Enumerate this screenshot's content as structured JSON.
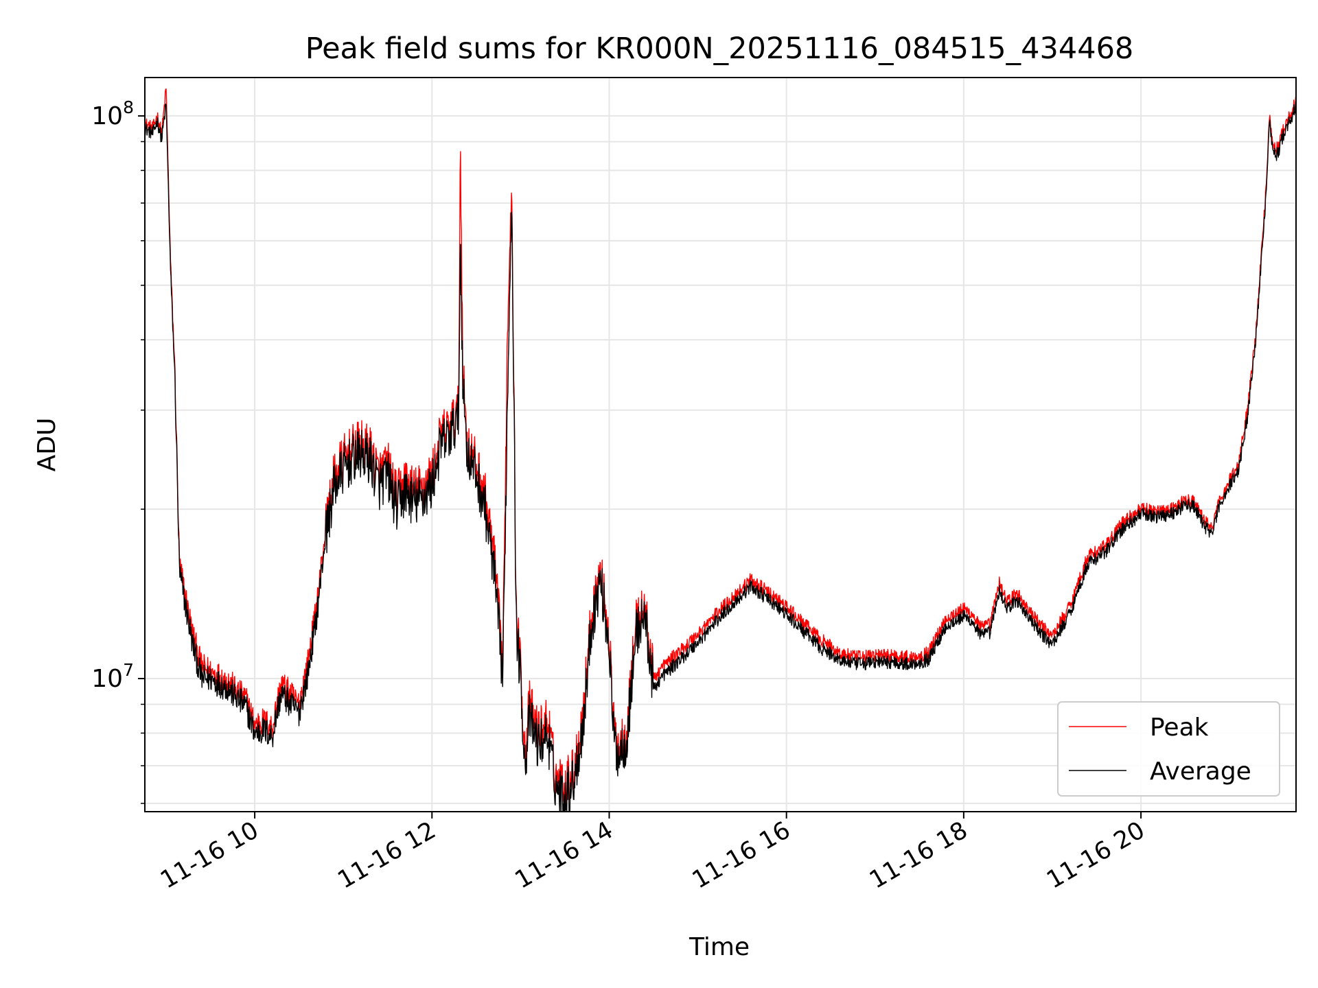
{
  "chart_data": {
    "type": "line",
    "title": "Peak field sums for KR000N_20251116_084515_434468",
    "xlabel": "Time",
    "ylabel": "ADU",
    "yscale": "log",
    "xlim": [
      8.76,
      21.75
    ],
    "ylim": [
      5800000,
      117000000
    ],
    "x_ticks": [
      {
        "value": 10,
        "label": "11-16 10"
      },
      {
        "value": 12,
        "label": "11-16 12"
      },
      {
        "value": 14,
        "label": "11-16 14"
      },
      {
        "value": 16,
        "label": "11-16 16"
      },
      {
        "value": 18,
        "label": "11-16 18"
      },
      {
        "value": 20,
        "label": "11-16 20"
      }
    ],
    "y_major_ticks": [
      {
        "value": 10000000,
        "base": "10",
        "exp": "7"
      },
      {
        "value": 100000000,
        "base": "10",
        "exp": "8"
      }
    ],
    "grid": true,
    "legend": {
      "position": "bottom-right",
      "entries": [
        "Peak",
        "Average"
      ]
    },
    "colors": {
      "Peak": "#ff0000",
      "Average": "#000000"
    },
    "series": [
      {
        "name": "Peak",
        "x": [
          8.76,
          8.85,
          8.9,
          8.95,
          9.0,
          9.05,
          9.1,
          9.15,
          9.2,
          9.3,
          9.4,
          9.5,
          9.6,
          9.7,
          9.8,
          9.9,
          10.0,
          10.1,
          10.2,
          10.25,
          10.3,
          10.4,
          10.5,
          10.6,
          10.7,
          10.8,
          10.9,
          11.0,
          11.1,
          11.2,
          11.3,
          11.4,
          11.5,
          11.6,
          11.7,
          11.8,
          11.9,
          12.0,
          12.1,
          12.2,
          12.3,
          12.32,
          12.35,
          12.4,
          12.5,
          12.6,
          12.7,
          12.8,
          12.85,
          12.9,
          12.95,
          13.0,
          13.05,
          13.1,
          13.2,
          13.3,
          13.4,
          13.5,
          13.6,
          13.7,
          13.8,
          13.9,
          14.0,
          14.05,
          14.1,
          14.2,
          14.3,
          14.4,
          14.5,
          14.6,
          14.8,
          15.0,
          15.2,
          15.4,
          15.6,
          15.8,
          16.0,
          16.2,
          16.4,
          16.6,
          16.8,
          17.0,
          17.2,
          17.4,
          17.6,
          17.8,
          18.0,
          18.1,
          18.2,
          18.3,
          18.4,
          18.5,
          18.6,
          18.8,
          18.9,
          19.0,
          19.2,
          19.4,
          19.6,
          19.8,
          20.0,
          20.2,
          20.4,
          20.5,
          20.6,
          20.7,
          20.8,
          20.9,
          21.0,
          21.1,
          21.2,
          21.3,
          21.4,
          21.45,
          21.5,
          21.55,
          21.6,
          21.75
        ],
        "values": [
          97000000,
          95000000,
          100000000,
          93000000,
          112000000,
          55000000,
          35000000,
          16000000,
          14500000,
          12000000,
          10500000,
          10300000,
          10100000,
          9900000,
          9500000,
          9200000,
          8300000,
          8400000,
          8200000,
          9000000,
          9800000,
          9400000,
          9000000,
          10700000,
          13500000,
          18500000,
          23000000,
          24500000,
          25500000,
          26000000,
          25500000,
          23000000,
          24000000,
          21000000,
          22500000,
          21500000,
          22000000,
          23000000,
          27000000,
          28000000,
          30000000,
          90000000,
          35000000,
          26000000,
          24000000,
          21000000,
          16500000,
          10500000,
          40000000,
          80000000,
          13000000,
          10500000,
          7400000,
          9000000,
          8000000,
          8500000,
          6700000,
          6500000,
          6900000,
          8500000,
          13000000,
          15500000,
          12000000,
          8200000,
          7600000,
          8100000,
          12500000,
          13400000,
          10000000,
          10500000,
          11200000,
          12000000,
          13000000,
          14000000,
          15000000,
          14200000,
          13400000,
          12500000,
          11700000,
          11100000,
          10900000,
          11000000,
          11000000,
          10900000,
          11100000,
          12800000,
          13300000,
          13000000,
          12300000,
          12500000,
          14800000,
          13700000,
          14200000,
          12800000,
          12300000,
          11900000,
          13500000,
          16500000,
          17200000,
          19000000,
          20000000,
          19800000,
          20200000,
          20800000,
          20600000,
          19200000,
          18500000,
          21000000,
          22500000,
          24000000,
          30000000,
          42000000,
          70000000,
          100000000,
          87000000,
          88000000,
          94000000,
          106000000
        ]
      },
      {
        "name": "Average",
        "x": [
          8.76,
          8.85,
          8.9,
          8.95,
          9.0,
          9.05,
          9.1,
          9.15,
          9.2,
          9.3,
          9.4,
          9.5,
          9.6,
          9.7,
          9.8,
          9.9,
          10.0,
          10.1,
          10.2,
          10.25,
          10.3,
          10.4,
          10.5,
          10.6,
          10.7,
          10.8,
          10.9,
          11.0,
          11.1,
          11.2,
          11.3,
          11.4,
          11.5,
          11.6,
          11.7,
          11.8,
          11.9,
          12.0,
          12.1,
          12.2,
          12.3,
          12.32,
          12.35,
          12.4,
          12.5,
          12.6,
          12.7,
          12.8,
          12.85,
          12.9,
          12.95,
          13.0,
          13.05,
          13.1,
          13.2,
          13.3,
          13.4,
          13.5,
          13.6,
          13.7,
          13.8,
          13.9,
          14.0,
          14.05,
          14.1,
          14.2,
          14.3,
          14.4,
          14.5,
          14.6,
          14.8,
          15.0,
          15.2,
          15.4,
          15.6,
          15.8,
          16.0,
          16.2,
          16.4,
          16.6,
          16.8,
          17.0,
          17.2,
          17.4,
          17.6,
          17.8,
          18.0,
          18.1,
          18.2,
          18.3,
          18.4,
          18.5,
          18.6,
          18.8,
          18.9,
          19.0,
          19.2,
          19.4,
          19.6,
          19.8,
          20.0,
          20.2,
          20.4,
          20.5,
          20.6,
          20.7,
          20.8,
          20.9,
          21.0,
          21.1,
          21.2,
          21.3,
          21.4,
          21.45,
          21.5,
          21.55,
          21.6,
          21.75
        ],
        "values": [
          95000000,
          93000000,
          98000000,
          91000000,
          105000000,
          53000000,
          34000000,
          15500000,
          14000000,
          11500000,
          10000000,
          10000000,
          9800000,
          9600000,
          9200000,
          8900000,
          8000000,
          8100000,
          7900000,
          8700000,
          9400000,
          9000000,
          8700000,
          10200000,
          13000000,
          18000000,
          22000000,
          23500000,
          24500000,
          25000000,
          24500000,
          22000000,
          23000000,
          20000000,
          21500000,
          20500000,
          21000000,
          22000000,
          26000000,
          27000000,
          29000000,
          60000000,
          33000000,
          25000000,
          23000000,
          20000000,
          15500000,
          10000000,
          30000000,
          75000000,
          12500000,
          10000000,
          7000000,
          8500000,
          7600000,
          8000000,
          6400000,
          6200000,
          6600000,
          8100000,
          12500000,
          15000000,
          11500000,
          7900000,
          7300000,
          7800000,
          12000000,
          13000000,
          9600000,
          10100000,
          10800000,
          11600000,
          12600000,
          13600000,
          14600000,
          13800000,
          13000000,
          12100000,
          11300000,
          10800000,
          10600000,
          10700000,
          10700000,
          10600000,
          10800000,
          12400000,
          12900000,
          12600000,
          11900000,
          12100000,
          14300000,
          13300000,
          13800000,
          12400000,
          11900000,
          11500000,
          13100000,
          16000000,
          16800000,
          18500000,
          19600000,
          19400000,
          19800000,
          20400000,
          20200000,
          18800000,
          18100000,
          20600000,
          22000000,
          23500000,
          29000000,
          41000000,
          68000000,
          98000000,
          85000000,
          86000000,
          92000000,
          104000000
        ]
      }
    ]
  }
}
